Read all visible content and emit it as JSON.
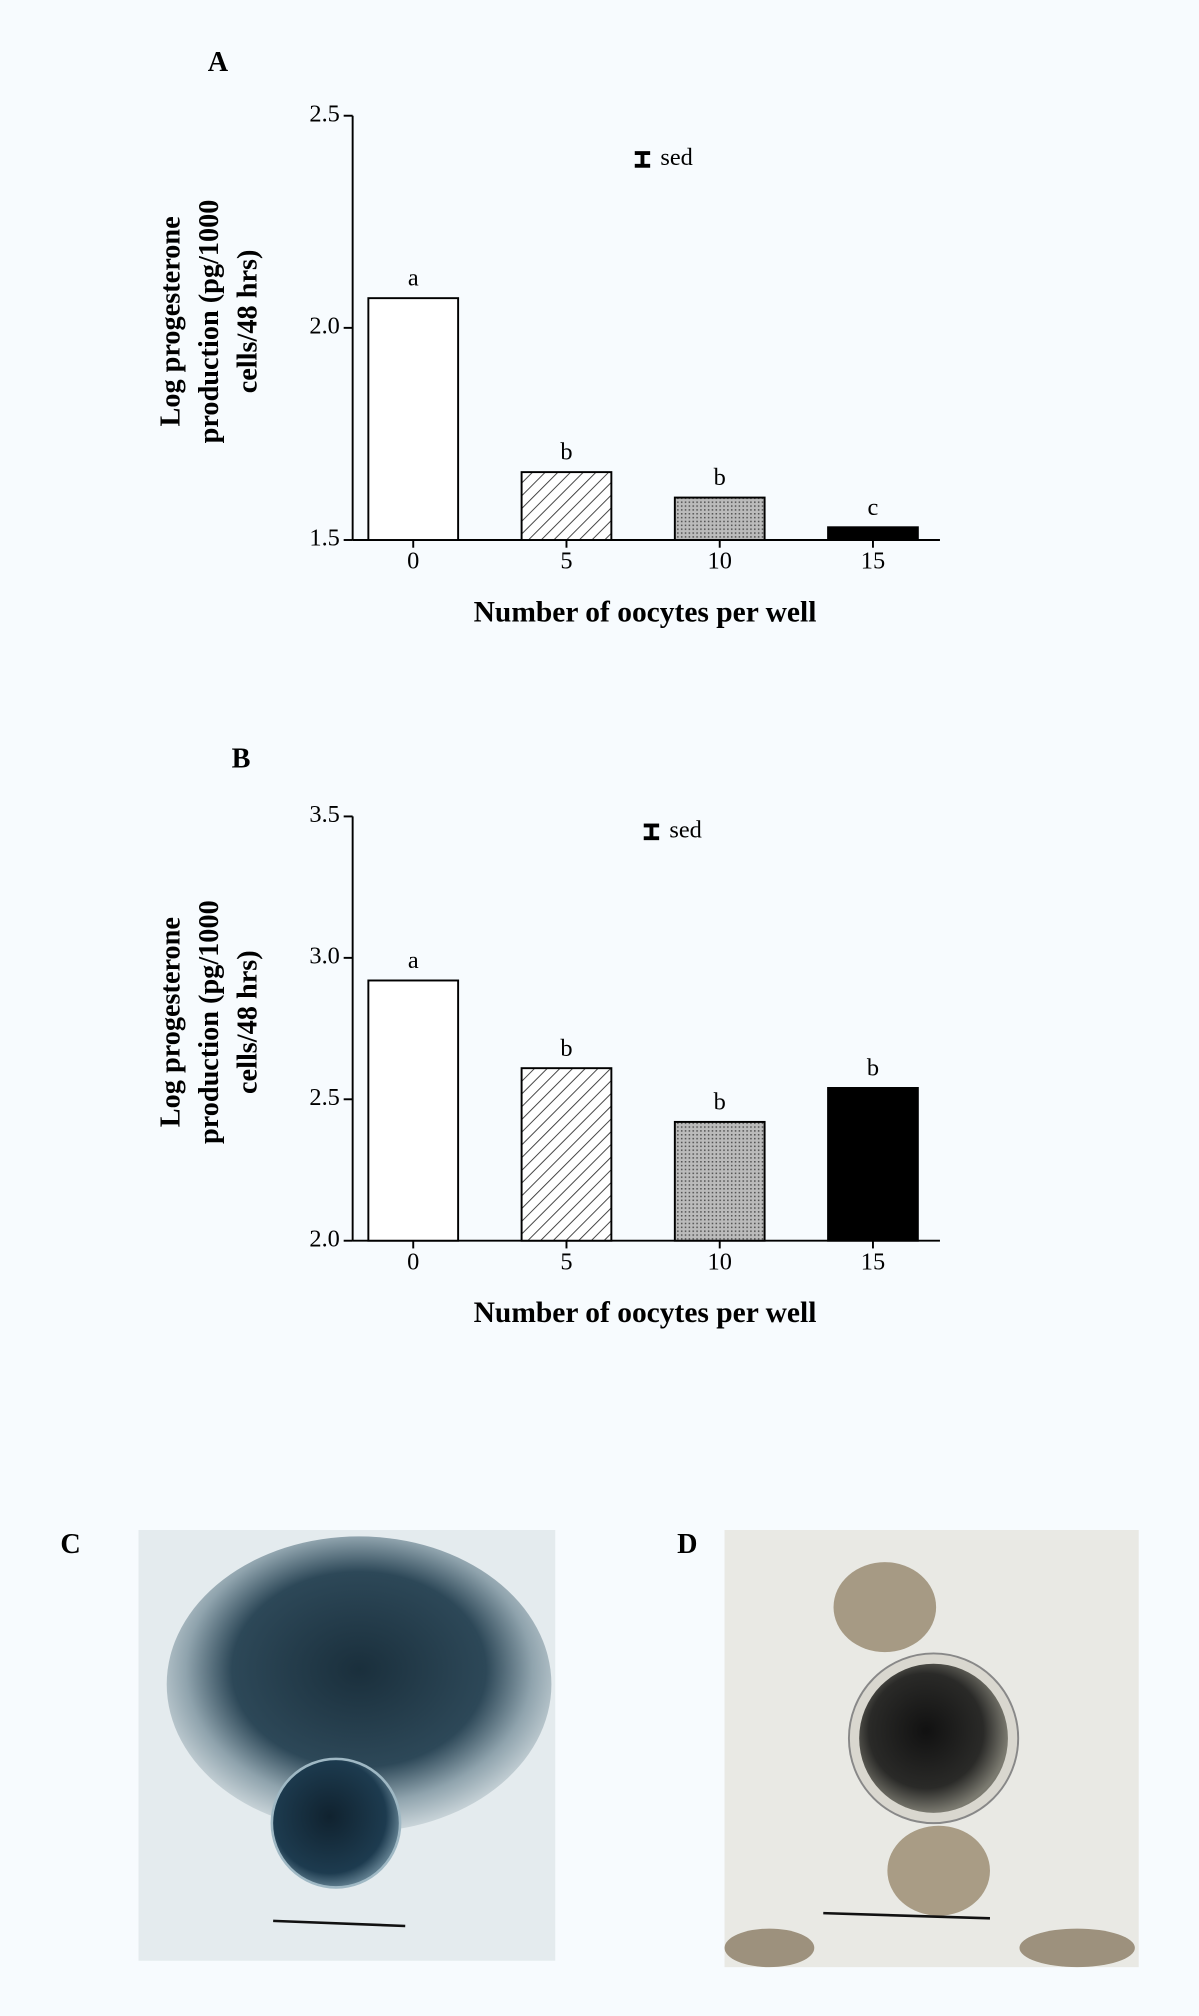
{
  "chart_data": [
    {
      "type": "bar",
      "title": "A",
      "ylabel": [
        "Log progesterone",
        "production (pg/1000",
        "cells/48 hrs)"
      ],
      "xlabel": "Number of oocytes per well",
      "categories": [
        "0",
        "5",
        "10",
        "15"
      ],
      "values": [
        2.07,
        1.66,
        1.6,
        1.53
      ],
      "bar_letters": [
        "a",
        "b",
        "b",
        "c"
      ],
      "fills": [
        "white",
        "hatch",
        "stipple",
        "black"
      ],
      "ylim": [
        1.5,
        2.5
      ],
      "yticks": [
        1.5,
        {
          "value": 2,
          "label": "2.0"
        },
        2.5
      ],
      "sed": 0.03,
      "sed_label": "sed"
    },
    {
      "type": "bar",
      "title": "B",
      "ylabel": [
        "Log progesterone",
        "production (pg/1000",
        "cells/48 hrs)"
      ],
      "xlabel": "Number of oocytes per well",
      "categories": [
        "0",
        "5",
        "10",
        "15"
      ],
      "values": [
        2.92,
        2.61,
        2.42,
        2.54
      ],
      "bar_letters": [
        "a",
        "b",
        "b",
        "b"
      ],
      "fills": [
        "white",
        "hatch",
        "stipple",
        "black"
      ],
      "ylim": [
        2.0,
        3.5
      ],
      "yticks": [
        {
          "value": 2,
          "label": "2.0"
        },
        2.5,
        {
          "value": 3,
          "label": "3.0"
        },
        3.5
      ],
      "sed": 0.045,
      "sed_label": "sed"
    }
  ],
  "panels": [
    {
      "label": "C"
    },
    {
      "label": "D"
    }
  ]
}
